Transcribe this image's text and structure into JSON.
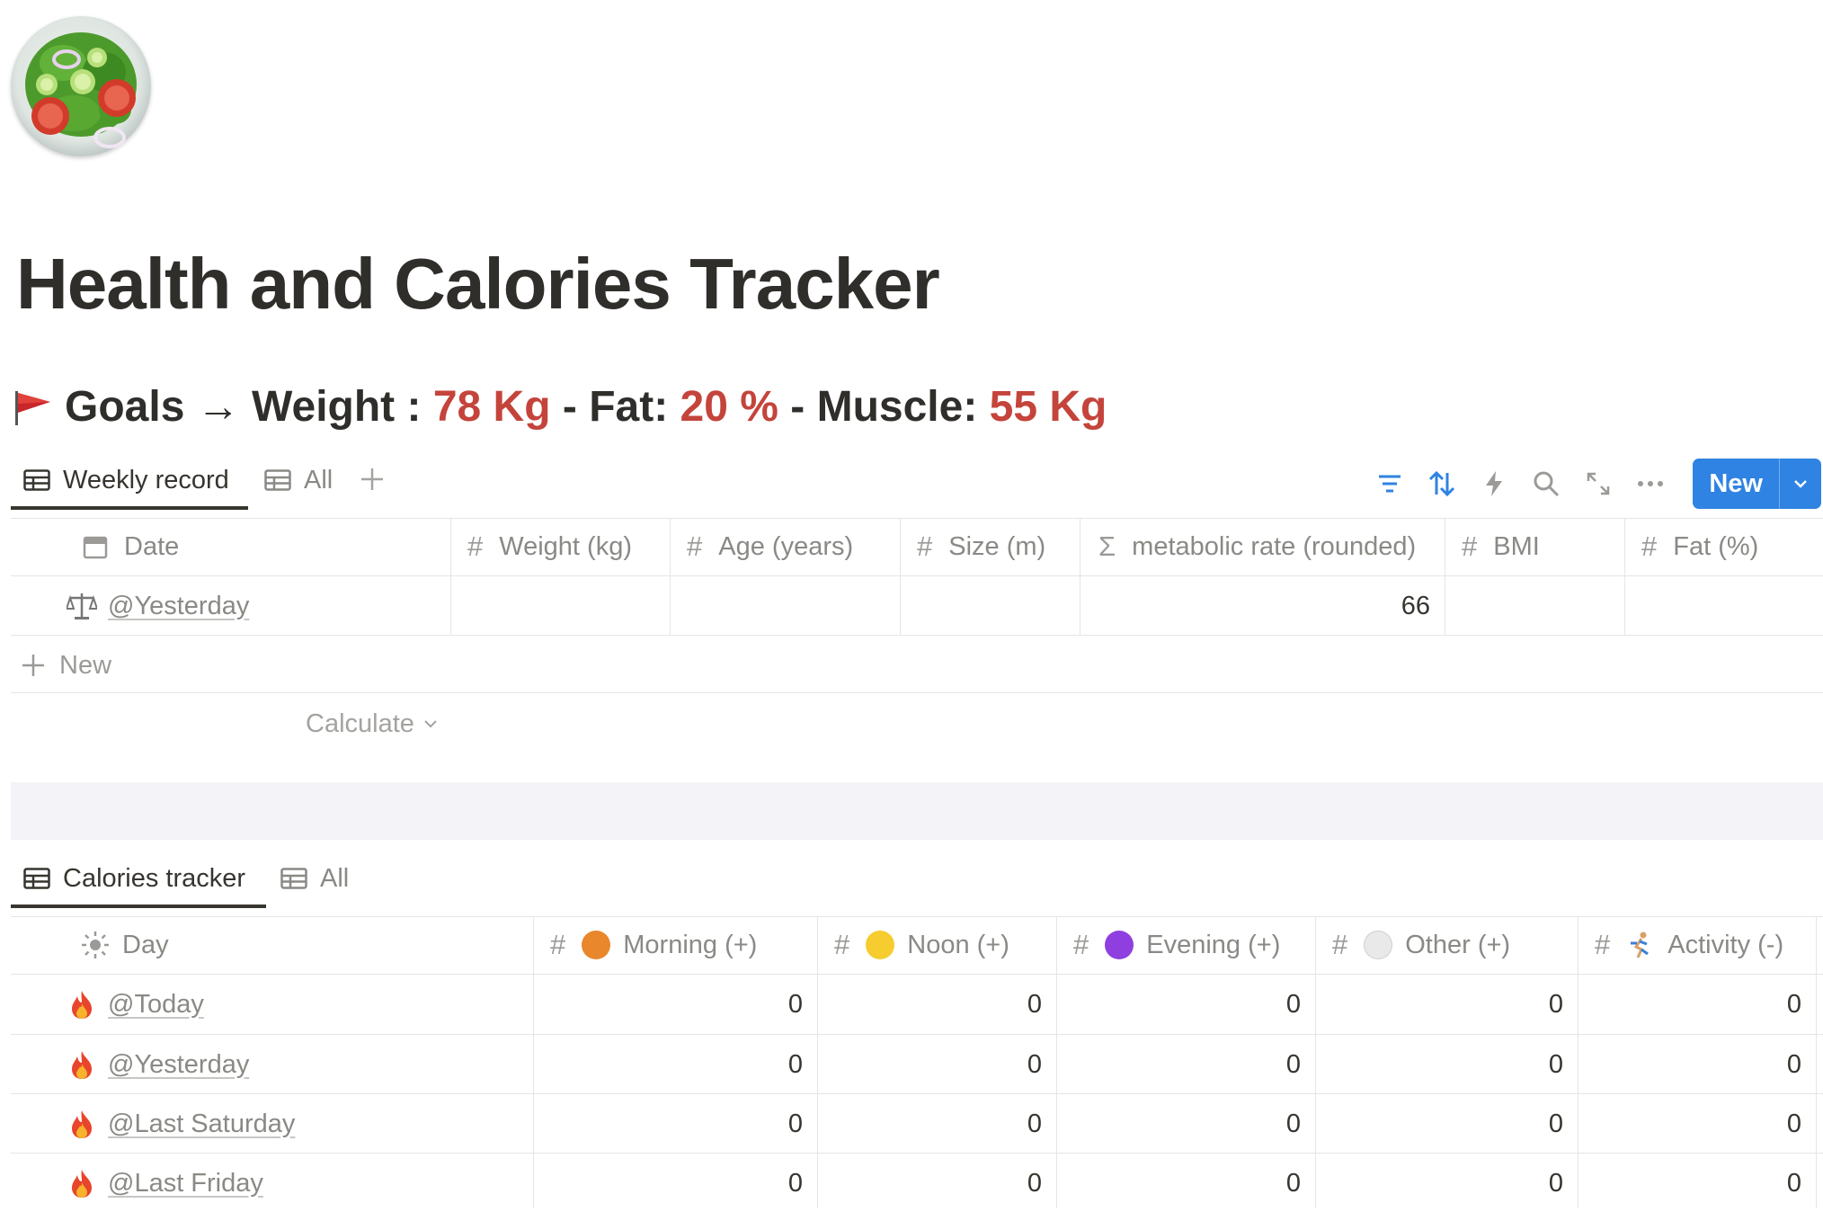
{
  "page": {
    "title": "Health and Calories Tracker",
    "icon": "salad-bowl-icon"
  },
  "goals": {
    "prefix": "Goals → Weight :",
    "weight": "78 Kg",
    "fat_label": "- Fat:",
    "fat": "20 %",
    "muscle_label": "- Muscle:",
    "muscle": "55 Kg",
    "highlight_color": "#c4443c"
  },
  "weekly": {
    "tabs": [
      {
        "label": "Weekly record",
        "active": true
      },
      {
        "label": "All",
        "active": false
      }
    ],
    "toolbar": {
      "new_label": "New",
      "accent_color": "#2f83e2"
    },
    "columns": [
      "Date",
      "Weight (kg)",
      "Age (years)",
      "Size (m)",
      "metabolic rate (rounded)",
      "BMI",
      "Fat (%)"
    ],
    "rows": [
      {
        "icon": "balance-scale-icon",
        "date": "@Yesterday",
        "weight": "",
        "age": "",
        "size": "",
        "metabolic_rate": "66",
        "bmi": "",
        "fat": ""
      }
    ],
    "new_row_label": "New",
    "calculate_label": "Calculate"
  },
  "calories": {
    "tabs": [
      {
        "label": "Calories tracker",
        "active": true
      },
      {
        "label": "All",
        "active": false
      }
    ],
    "columns": [
      {
        "label": "Day",
        "icon": "sun-icon"
      },
      {
        "label": "Morning (+)",
        "icon": "orange-circle",
        "color": "#e8872b"
      },
      {
        "label": "Noon (+)",
        "icon": "yellow-circle",
        "color": "#f6cc2f"
      },
      {
        "label": "Evening (+)",
        "icon": "purple-circle",
        "color": "#8f3fe0"
      },
      {
        "label": "Other (+)",
        "icon": "white-circle",
        "color": "#e9e9e9"
      },
      {
        "label": "Activity (-)",
        "icon": "runner-icon"
      }
    ],
    "rows": [
      {
        "icon": "fire-icon",
        "day": "@Today",
        "morning": "0",
        "noon": "0",
        "evening": "0",
        "other": "0",
        "activity": "0"
      },
      {
        "icon": "fire-icon",
        "day": "@Yesterday",
        "morning": "0",
        "noon": "0",
        "evening": "0",
        "other": "0",
        "activity": "0"
      },
      {
        "icon": "fire-icon",
        "day": "@Last Saturday",
        "morning": "0",
        "noon": "0",
        "evening": "0",
        "other": "0",
        "activity": "0"
      },
      {
        "icon": "fire-icon",
        "day": "@Last Friday",
        "morning": "0",
        "noon": "0",
        "evening": "0",
        "other": "0",
        "activity": "0"
      }
    ]
  }
}
